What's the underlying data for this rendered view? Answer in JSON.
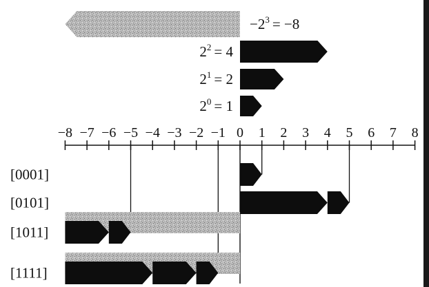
{
  "weights": [
    {
      "base": "−2",
      "exp": "3",
      "result": "= −8",
      "value": -8,
      "shade": "gray"
    },
    {
      "base": "2",
      "exp": "2",
      "result": "= 4",
      "value": 4,
      "shade": "black"
    },
    {
      "base": "2",
      "exp": "1",
      "result": "= 2",
      "value": 2,
      "shade": "black"
    },
    {
      "base": "2",
      "exp": "0",
      "result": "= 1",
      "value": 1,
      "shade": "black"
    }
  ],
  "axis": {
    "min": -8,
    "max": 8,
    "ticks": [
      "−8",
      "−7",
      "−6",
      "−5",
      "−4",
      "−3",
      "−2",
      "−1",
      "0",
      "1",
      "2",
      "3",
      "4",
      "5",
      "6",
      "7",
      "8"
    ]
  },
  "examples": [
    {
      "label": "[0001]",
      "value": 1,
      "gray": false,
      "parts": [
        1
      ]
    },
    {
      "label": "[0101]",
      "value": 5,
      "gray": false,
      "parts": [
        4,
        1
      ]
    },
    {
      "label": "[1011]",
      "value": -5,
      "gray": true,
      "parts": [
        2,
        1
      ]
    },
    {
      "label": "[1111]",
      "value": -1,
      "gray": true,
      "parts": [
        4,
        2,
        1
      ]
    }
  ],
  "colors": {
    "black": "#0d0d0d",
    "gray": "#b3b3b3",
    "text": "#111111"
  }
}
